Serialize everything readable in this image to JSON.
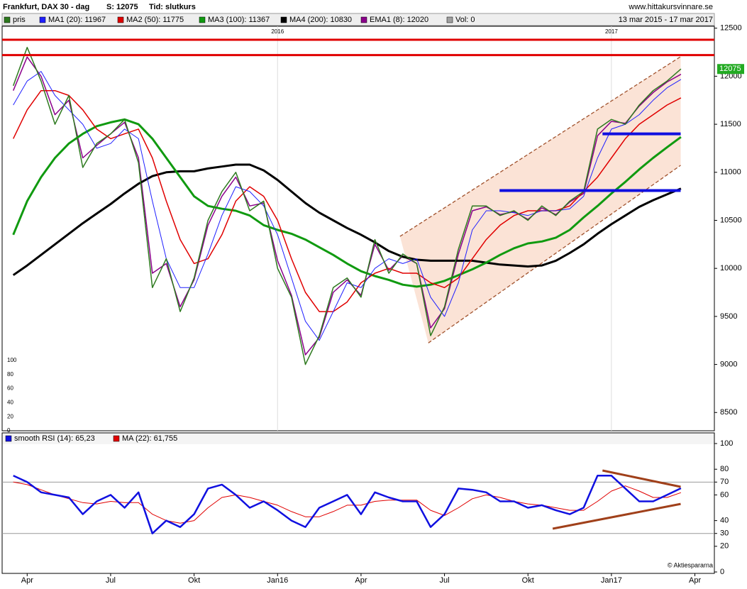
{
  "chart_data": [
    {
      "type": "line",
      "title": "Frankfurt, DAX 30 -  dag",
      "info": [
        "S: 12075",
        "Tid: slutkurs"
      ],
      "source": "www.hittakursvinnare.se",
      "date_range": "13 mar 2015 - 17 mar 2017",
      "xlim": [
        2.1,
        27.7
      ],
      "ylim": [
        8310,
        12520
      ],
      "yticks": [
        8500,
        9000,
        9500,
        10000,
        10500,
        11000,
        11500,
        12000,
        12500
      ],
      "year_marks": [
        {
          "value": 12,
          "label": "2016"
        },
        {
          "value": 24,
          "label": "2017"
        }
      ],
      "volume_yticks": [
        0,
        20,
        40,
        60,
        80,
        100
      ],
      "volume_legend": {
        "name": "Vol: 0",
        "color": "#a0a0a0"
      },
      "price_marker": true,
      "x": [
        2.5,
        3,
        3.5,
        4,
        4.5,
        5,
        5.5,
        6,
        6.5,
        7,
        7.5,
        8,
        8.5,
        9,
        9.5,
        10,
        10.5,
        11,
        11.5,
        12,
        12.5,
        13,
        13.5,
        14,
        14.5,
        15,
        15.5,
        16,
        16.5,
        17,
        17.5,
        18,
        18.5,
        19,
        19.5,
        20,
        20.5,
        21,
        21.5,
        22,
        22.5,
        23,
        23.5,
        24,
        24.5,
        25,
        25.5,
        26,
        26.5
      ],
      "series": [
        {
          "name": "pris",
          "color": "#2e7a1f",
          "width": 1.5,
          "values": [
            11900,
            12300,
            11950,
            11500,
            11800,
            11050,
            11300,
            11400,
            11550,
            11100,
            9800,
            10100,
            9550,
            9900,
            10500,
            10800,
            11000,
            10600,
            10700,
            10000,
            9700,
            9000,
            9300,
            9800,
            9900,
            9700,
            10300,
            9950,
            10150,
            10050,
            9300,
            9600,
            10200,
            10650,
            10650,
            10550,
            10600,
            10500,
            10650,
            10550,
            10700,
            10800,
            11450,
            11550,
            11500,
            11700,
            11850,
            11950,
            12075
          ]
        },
        {
          "name": "MA1 (20): 11967",
          "color": "#2020ff",
          "width": 1,
          "values": [
            11700,
            11950,
            12050,
            11800,
            11650,
            11500,
            11250,
            11300,
            11450,
            11350,
            10700,
            10100,
            9800,
            9800,
            10150,
            10550,
            10850,
            10800,
            10650,
            10350,
            9900,
            9450,
            9250,
            9550,
            9850,
            9800,
            10000,
            10100,
            10050,
            10100,
            9700,
            9500,
            9850,
            10400,
            10600,
            10600,
            10580,
            10550,
            10600,
            10600,
            10620,
            10750,
            11150,
            11450,
            11500,
            11600,
            11750,
            11880,
            11967
          ]
        },
        {
          "name": "MA2 (50): 11775",
          "color": "#e00000",
          "width": 1.5,
          "values": [
            11350,
            11650,
            11850,
            11850,
            11800,
            11650,
            11450,
            11350,
            11400,
            11450,
            11150,
            10700,
            10300,
            10050,
            10100,
            10350,
            10700,
            10850,
            10750,
            10500,
            10100,
            9750,
            9550,
            9550,
            9650,
            9850,
            9950,
            10000,
            9950,
            9950,
            9850,
            9800,
            9900,
            10100,
            10300,
            10450,
            10550,
            10600,
            10600,
            10600,
            10650,
            10800,
            10950,
            11150,
            11350,
            11500,
            11600,
            11700,
            11775
          ]
        },
        {
          "name": "MA3 (100): 11367",
          "color": "#109a10",
          "width": 3,
          "values": [
            10350,
            10700,
            10950,
            11150,
            11300,
            11400,
            11480,
            11520,
            11550,
            11500,
            11350,
            11150,
            10950,
            10750,
            10650,
            10620,
            10600,
            10550,
            10450,
            10400,
            10360,
            10300,
            10220,
            10140,
            10050,
            9970,
            9920,
            9880,
            9830,
            9810,
            9830,
            9870,
            9930,
            9990,
            10060,
            10140,
            10210,
            10260,
            10280,
            10320,
            10400,
            10530,
            10650,
            10780,
            10900,
            11030,
            11150,
            11260,
            11367
          ]
        },
        {
          "name": "MA4 (200): 10830",
          "color": "#000000",
          "width": 3,
          "values": [
            9930,
            10030,
            10140,
            10250,
            10360,
            10470,
            10570,
            10670,
            10780,
            10880,
            10960,
            11000,
            11010,
            11010,
            11040,
            11060,
            11080,
            11080,
            11020,
            10920,
            10800,
            10680,
            10580,
            10500,
            10420,
            10350,
            10270,
            10180,
            10120,
            10090,
            10080,
            10080,
            10080,
            10080,
            10060,
            10040,
            10030,
            10020,
            10030,
            10080,
            10160,
            10250,
            10360,
            10460,
            10550,
            10640,
            10710,
            10770,
            10830
          ]
        },
        {
          "name": "EMA1 (8): 12020",
          "color": "#8b008b",
          "width": 1.5,
          "values": [
            11850,
            12200,
            12000,
            11600,
            11750,
            11150,
            11280,
            11400,
            11520,
            11150,
            9950,
            10050,
            9600,
            9880,
            10450,
            10750,
            10950,
            10650,
            10680,
            10080,
            9720,
            9100,
            9280,
            9750,
            9880,
            9720,
            10250,
            9980,
            10130,
            10050,
            9380,
            9580,
            10150,
            10600,
            10640,
            10560,
            10590,
            10510,
            10630,
            10560,
            10690,
            10780,
            11380,
            11530,
            11510,
            11690,
            11830,
            11940,
            12020
          ]
        }
      ],
      "hlines": [
        {
          "value": 12380,
          "color": "#e00000"
        },
        {
          "value": 12220,
          "color": "#e00000"
        }
      ],
      "segments": [
        {
          "x": [
            23.68,
            26.49
          ],
          "y": [
            11400,
            11400
          ],
          "color": "#1010e0"
        },
        {
          "x": [
            19.98,
            26.49
          ],
          "y": [
            10810,
            10810
          ],
          "color": "#1010e0"
        }
      ],
      "channel": {
        "color": "#a0522d",
        "fill": "#fbe3d6",
        "upper": {
          "x": [
            16.4,
            26.49
          ],
          "y": [
            10333,
            12204
          ]
        },
        "lower": {
          "x": [
            17.42,
            26.49
          ],
          "y": [
            9224,
            11073
          ]
        }
      }
    },
    {
      "type": "line",
      "source": "© Aktiespararna",
      "xlim": [
        2.1,
        27.7
      ],
      "ylim": [
        -1.1,
        108.3
      ],
      "yticks": [
        0,
        20,
        30,
        40,
        60,
        70,
        80,
        100
      ],
      "ref_lines": [
        30,
        70
      ],
      "xticks": [
        {
          "value": 3,
          "label": "Apr"
        },
        {
          "value": 6,
          "label": "Jul"
        },
        {
          "value": 9,
          "label": "Okt"
        },
        {
          "value": 12,
          "label": "Jan16"
        },
        {
          "value": 15,
          "label": "Apr"
        },
        {
          "value": 18,
          "label": "Jul"
        },
        {
          "value": 21,
          "label": "Okt"
        },
        {
          "value": 24,
          "label": "Jan17"
        },
        {
          "value": 27,
          "label": "Apr"
        }
      ],
      "x": [
        2.5,
        3,
        3.5,
        4,
        4.5,
        5,
        5.5,
        6,
        6.5,
        7,
        7.5,
        8,
        8.5,
        9,
        9.5,
        10,
        10.5,
        11,
        11.5,
        12,
        12.5,
        13,
        13.5,
        14,
        14.5,
        15,
        15.5,
        16,
        16.5,
        17,
        17.5,
        18,
        18.5,
        19,
        19.5,
        20,
        20.5,
        21,
        21.5,
        22,
        22.5,
        23,
        23.5,
        24,
        24.5,
        25,
        25.5,
        26,
        26.5
      ],
      "series": [
        {
          "name": "smooth RSI (14): 65,23",
          "color": "#1010e0",
          "width": 2.5,
          "values": [
            75,
            70,
            62,
            60,
            58,
            45,
            55,
            60,
            50,
            62,
            30,
            40,
            35,
            45,
            65,
            68,
            60,
            50,
            55,
            48,
            40,
            35,
            50,
            55,
            60,
            45,
            62,
            58,
            55,
            55,
            35,
            45,
            65,
            64,
            62,
            55,
            55,
            50,
            52,
            48,
            45,
            50,
            75,
            75,
            65,
            55,
            55,
            60,
            65.23
          ]
        },
        {
          "name": "MA (22): 61,755",
          "color": "#e00000",
          "width": 1,
          "values": [
            70,
            68,
            64,
            60,
            57,
            54,
            53,
            55,
            54,
            54,
            45,
            40,
            38,
            40,
            50,
            58,
            60,
            58,
            55,
            52,
            47,
            43,
            43,
            47,
            52,
            52,
            55,
            56,
            56,
            56,
            48,
            44,
            50,
            57,
            60,
            58,
            55,
            53,
            52,
            50,
            48,
            48,
            55,
            63,
            67,
            63,
            58,
            58,
            61.755
          ]
        }
      ],
      "trendlines": [
        {
          "x": [
            21.89,
            26.49
          ],
          "y": [
            33.7,
            53
          ],
          "color": "#a0401a"
        },
        {
          "x": [
            23.68,
            26.49
          ],
          "y": [
            79,
            66.3
          ],
          "color": "#a0401a"
        }
      ]
    }
  ]
}
